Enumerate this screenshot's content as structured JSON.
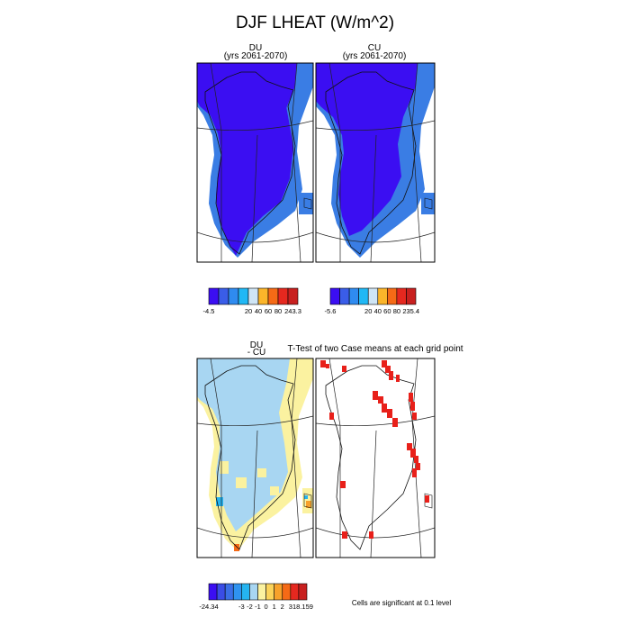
{
  "title": "DJF LHEAT (W/m^2)",
  "panels": {
    "du": {
      "title": "DU",
      "subtitle": "(yrs 2061-2070)"
    },
    "cu": {
      "title": "CU",
      "subtitle": "(yrs 2061-2070)"
    },
    "diff": {
      "title": "DU",
      "subtitle": "- CU"
    },
    "ttest": {
      "title": "T-Test of two Case means at each grid point"
    }
  },
  "note": "Cells are significant at 0.1 level",
  "chart_data": [
    {
      "type": "heatmap",
      "name_panel": "DU",
      "colorbar": {
        "colors": [
          "#3b0ef2",
          "#3a5de8",
          "#2f8bf0",
          "#20b8f5",
          "#cfe5f5",
          "#fbb52a",
          "#f56a16",
          "#e5281f",
          "#c8201f"
        ],
        "tick_labels": [
          "-4.5",
          "20",
          "40",
          "60",
          "80",
          "243.3"
        ]
      }
    },
    {
      "type": "heatmap",
      "name_panel": "CU",
      "colorbar": {
        "colors": [
          "#3b0ef2",
          "#3a5de8",
          "#2f8bf0",
          "#20b8f5",
          "#cfe5f5",
          "#fbb52a",
          "#f56a16",
          "#e5281f",
          "#c8201f"
        ],
        "tick_labels": [
          "-5.6",
          "20",
          "40",
          "60",
          "80",
          "235.4"
        ]
      }
    },
    {
      "type": "heatmap",
      "name_panel": "DU - CU",
      "colorbar": {
        "colors": [
          "#3b0ef2",
          "#3a4de6",
          "#3a6fe6",
          "#2f93f0",
          "#25b4f0",
          "#a8d6f2",
          "#fbf2a0",
          "#fbd35a",
          "#f7a12b",
          "#f56a16",
          "#e5281f",
          "#c8201f"
        ],
        "tick_labels": [
          "-24.34",
          "-3",
          "-2",
          "-1",
          "0",
          "1",
          "2",
          "3",
          "18.159"
        ]
      }
    },
    {
      "type": "heatmap",
      "name_panel": "T-Test",
      "colors": {
        "significant": "#e8201a"
      }
    }
  ]
}
